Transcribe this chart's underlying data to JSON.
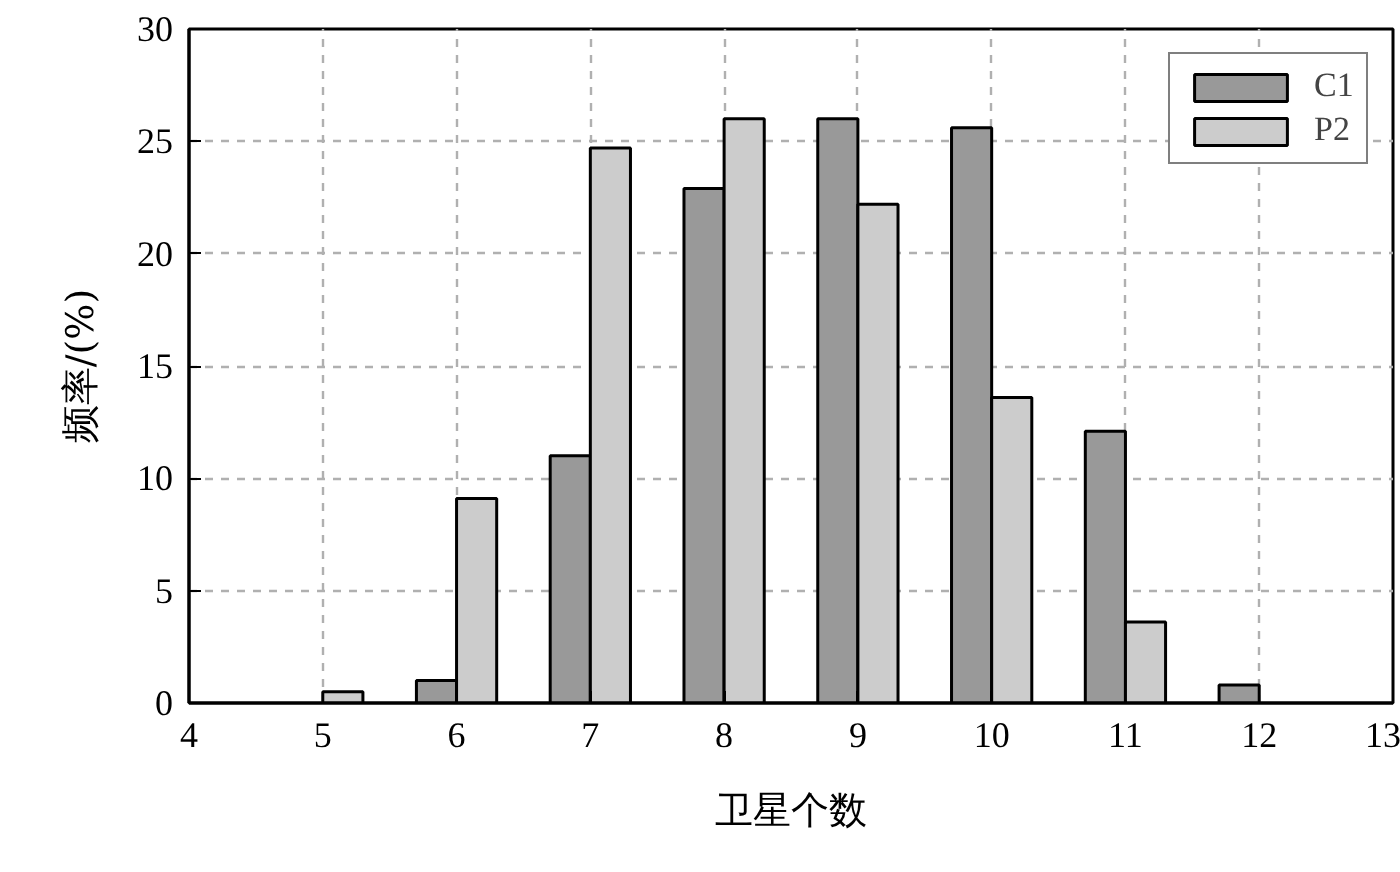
{
  "chart_data": {
    "type": "bar",
    "xlabel": "卫星个数",
    "ylabel": "频率/(%)",
    "x": [
      5,
      6,
      7,
      8,
      9,
      10,
      11,
      12
    ],
    "series": [
      {
        "name": "C1",
        "color": "#999999",
        "values": [
          null,
          1.0,
          11.0,
          22.9,
          26.0,
          25.6,
          12.1,
          0.8
        ]
      },
      {
        "name": "P2",
        "color": "#cccccc",
        "values": [
          0.5,
          9.1,
          24.7,
          26.0,
          22.2,
          13.6,
          3.6,
          null
        ]
      }
    ],
    "xlim": [
      4,
      13
    ],
    "xticks": [
      4,
      5,
      6,
      7,
      8,
      9,
      10,
      11,
      12,
      13
    ],
    "ylim": [
      0,
      30
    ],
    "yticks": [
      0,
      5,
      10,
      15,
      20,
      25,
      30
    ],
    "grid": true,
    "legend": "top right"
  }
}
